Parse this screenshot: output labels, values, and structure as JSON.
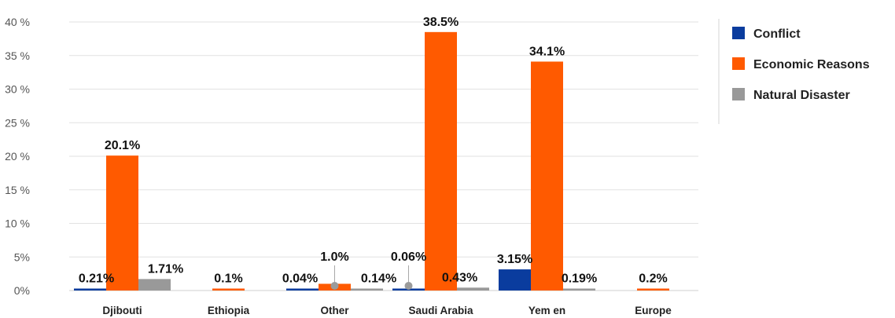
{
  "chart_data": {
    "type": "bar",
    "title": "",
    "xlabel": "",
    "ylabel": "",
    "ylim": [
      0,
      40
    ],
    "yticks": [
      0,
      5,
      10,
      15,
      20,
      25,
      30,
      35,
      40
    ],
    "ytick_labels": [
      "0%",
      "5%",
      "10 %",
      "15 %",
      "20 %",
      "25 %",
      "30 %",
      "35 %",
      "40 %"
    ],
    "grid": true,
    "legend_position": "right",
    "categories": [
      "Djibouti",
      "Ethiopia",
      "Other",
      "Saudi Arabia",
      "Yem en",
      "Europe"
    ],
    "series": [
      {
        "name": "Conflict",
        "color": "#0a3c9e",
        "values": [
          0.21,
          0,
          0.04,
          0.06,
          3.15,
          0
        ],
        "labels": [
          "0.21%",
          "",
          "0.04%",
          "0.06%",
          "3.15%",
          ""
        ]
      },
      {
        "name": "Economic Reasons",
        "color": "#ff5a00",
        "values": [
          20.1,
          0.1,
          1.0,
          38.5,
          34.1,
          0.2
        ],
        "labels": [
          "20.1%",
          "0.1%",
          "1.0%",
          "38.5%",
          "34.1%",
          "0.2%"
        ]
      },
      {
        "name": "Natural Disaster",
        "color": "#999999",
        "values": [
          1.71,
          0,
          0.14,
          0.43,
          0.19,
          0
        ],
        "labels": [
          "1.71%",
          "",
          "0.14%",
          "0.43%",
          "0.19%",
          ""
        ]
      }
    ]
  }
}
